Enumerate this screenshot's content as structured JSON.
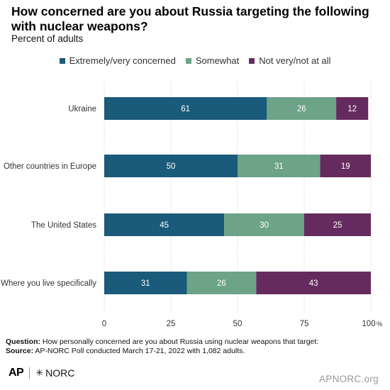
{
  "title": "How concerned are you about Russia targeting the following with nuclear weapons?",
  "subtitle": "Percent of adults",
  "chart_data": {
    "type": "bar",
    "orientation": "horizontal",
    "stacked": true,
    "categories": [
      "Ukraine",
      "Other countries in Europe",
      "The United States",
      "Where you live specifically"
    ],
    "series": [
      {
        "name": "Extremely/very concerned",
        "color": "#1a5a7a",
        "values": [
          61,
          50,
          45,
          31
        ]
      },
      {
        "name": "Somewhat",
        "color": "#6da387",
        "values": [
          26,
          31,
          30,
          26
        ]
      },
      {
        "name": "Not very/not at all",
        "color": "#652b5e",
        "values": [
          12,
          19,
          25,
          43
        ]
      }
    ],
    "xlim": [
      0,
      100
    ],
    "xticks": [
      "0",
      "25",
      "50",
      "75",
      "100"
    ],
    "x_unit": "%",
    "legend_position": "top",
    "grid": "vertical-dotted"
  },
  "footer": {
    "question_label": "Question:",
    "question_text": " How personally concerned are you about Russia using nuclear weapons that target:",
    "source_label": "Source:",
    "source_text": " AP-NORC Poll conducted March 17-21, 2022 with 1,082 adults."
  },
  "logos": {
    "ap": "AP",
    "norc": "NORC"
  },
  "site": "APNORC.org"
}
